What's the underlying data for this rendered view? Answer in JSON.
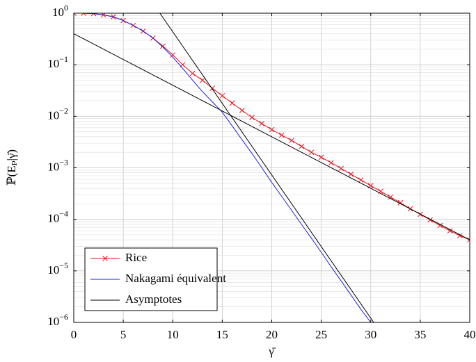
{
  "chart_data": {
    "type": "line",
    "xlabel": "γ̄",
    "ylabel": "ℙ(Eₚ|γ̄)",
    "xlim": [
      0,
      40
    ],
    "ylim": [
      1e-06,
      1
    ],
    "log_y": true,
    "grid": true,
    "minor_grid": true,
    "legend": "lower left",
    "xticks": [
      0,
      5,
      10,
      15,
      20,
      25,
      30,
      35,
      40
    ],
    "yticks": [
      {
        "value": 1e-06,
        "label": "10",
        "exponent": "−6"
      },
      {
        "value": 1e-05,
        "label": "10",
        "exponent": "−5"
      },
      {
        "value": 0.0001,
        "label": "10",
        "exponent": "−4"
      },
      {
        "value": 0.001,
        "label": "10",
        "exponent": "−3"
      },
      {
        "value": 0.01,
        "label": "10",
        "exponent": "−2"
      },
      {
        "value": 0.1,
        "label": "10",
        "exponent": "−1"
      },
      {
        "value": 1,
        "label": "10",
        "exponent": "0"
      }
    ],
    "series": [
      {
        "name": "Rice",
        "color": "#e8141e",
        "marker": "x",
        "x": [
          0,
          1,
          2,
          3,
          4,
          5,
          6,
          7,
          8,
          9,
          10,
          11,
          12,
          13,
          14,
          15,
          16,
          17,
          18,
          19,
          20,
          21,
          22,
          23,
          24,
          25,
          26,
          27,
          28,
          29,
          30,
          31,
          32,
          33,
          34,
          35,
          36,
          37,
          38,
          39,
          40
        ],
        "values": [
          1,
          1,
          0.98,
          0.93,
          0.85,
          0.72,
          0.58,
          0.45,
          0.33,
          0.23,
          0.155,
          0.1,
          0.068,
          0.05,
          0.035,
          0.025,
          0.018,
          0.013,
          0.0095,
          0.0072,
          0.0055,
          0.0043,
          0.0034,
          0.0026,
          0.002,
          0.0016,
          0.00125,
          0.00097,
          0.00075,
          0.00058,
          0.00045,
          0.00035,
          0.00027,
          0.00021,
          0.00016,
          0.000125,
          9.75e-05,
          7.6e-05,
          6e-05,
          4.8e-05,
          4e-05
        ]
      },
      {
        "name": "Nakagami équivalent",
        "color": "#1f1fe0",
        "x": [
          0,
          1,
          2,
          3,
          4,
          5,
          6,
          7,
          8,
          9,
          10,
          11,
          12,
          13,
          14,
          15,
          16,
          17,
          18,
          19,
          20,
          21,
          22,
          23,
          24,
          25,
          26,
          27,
          28,
          29,
          30
        ],
        "values": [
          1,
          1,
          0.98,
          0.93,
          0.85,
          0.72,
          0.58,
          0.45,
          0.33,
          0.22,
          0.14,
          0.085,
          0.05,
          0.03,
          0.019,
          0.012,
          0.0065,
          0.0035,
          0.0019,
          0.001,
          0.00052,
          0.00028,
          0.00015,
          8e-05,
          4.3e-05,
          2.3e-05,
          1.2e-05,
          6.4e-06,
          3.4e-06,
          1.8e-06,
          1e-06
        ]
      },
      {
        "name": "Asymptotes",
        "color": "#000000",
        "segments": [
          {
            "x": [
              0,
              40
            ],
            "values": [
              0.4,
              4e-05
            ]
          },
          {
            "x": [
              8.7,
              30.3
            ],
            "values": [
              1,
              1e-06
            ]
          }
        ]
      }
    ]
  }
}
